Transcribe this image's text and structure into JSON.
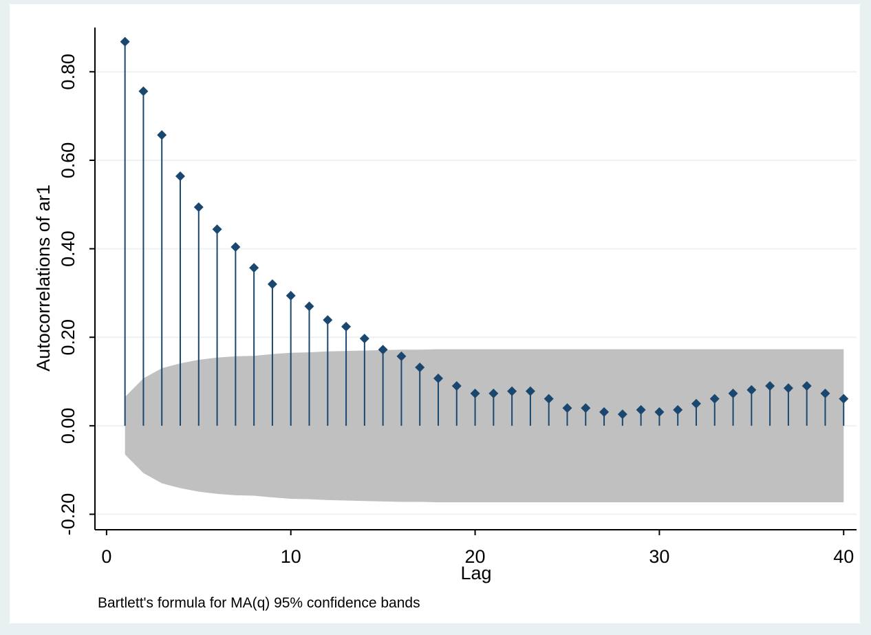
{
  "chart_data": {
    "type": "stem",
    "ylabel": "Autocorrelations of ar1",
    "xlabel": "Lag",
    "note": "Bartlett's formula for MA(q) 95% confidence bands",
    "x": [
      1,
      2,
      3,
      4,
      5,
      6,
      7,
      8,
      9,
      10,
      11,
      12,
      13,
      14,
      15,
      16,
      17,
      18,
      19,
      20,
      21,
      22,
      23,
      24,
      25,
      26,
      27,
      28,
      29,
      30,
      31,
      32,
      33,
      34,
      35,
      36,
      37,
      38,
      39,
      40
    ],
    "values": [
      0.868,
      0.756,
      0.657,
      0.564,
      0.494,
      0.444,
      0.404,
      0.357,
      0.32,
      0.294,
      0.27,
      0.239,
      0.224,
      0.197,
      0.172,
      0.157,
      0.132,
      0.107,
      0.09,
      0.073,
      0.073,
      0.078,
      0.078,
      0.061,
      0.04,
      0.04,
      0.031,
      0.026,
      0.036,
      0.031,
      0.036,
      0.05,
      0.061,
      0.073,
      0.081,
      0.09,
      0.085,
      0.09,
      0.073,
      0.061
    ],
    "color": "#1a476f",
    "band": {
      "color": "#c0c0c0",
      "upper": [
        0.065,
        0.107,
        0.13,
        0.141,
        0.149,
        0.154,
        0.157,
        0.158,
        0.162,
        0.165,
        0.166,
        0.168,
        0.169,
        0.17,
        0.171,
        0.172,
        0.172,
        0.173,
        0.173,
        0.173,
        0.173,
        0.173,
        0.173,
        0.173,
        0.173,
        0.173,
        0.173,
        0.173,
        0.173,
        0.173,
        0.173,
        0.173,
        0.173,
        0.173,
        0.173,
        0.173,
        0.173,
        0.173,
        0.173,
        0.173
      ],
      "lower": [
        -0.065,
        -0.107,
        -0.13,
        -0.141,
        -0.149,
        -0.154,
        -0.157,
        -0.158,
        -0.162,
        -0.165,
        -0.166,
        -0.168,
        -0.169,
        -0.17,
        -0.171,
        -0.172,
        -0.172,
        -0.173,
        -0.173,
        -0.173,
        -0.173,
        -0.173,
        -0.173,
        -0.173,
        -0.173,
        -0.173,
        -0.173,
        -0.173,
        -0.173,
        -0.173,
        -0.173,
        -0.173,
        -0.173,
        -0.173,
        -0.173,
        -0.173,
        -0.173,
        -0.173,
        -0.173,
        -0.173
      ]
    },
    "xlim": [
      -0.63,
      40.7
    ],
    "ylim": [
      -0.235,
      0.9
    ],
    "xticks": [
      0,
      10,
      20,
      30,
      40
    ],
    "yticks": [
      {
        "value": -0.2,
        "label": "-0.20"
      },
      {
        "value": 0,
        "label": "0.00"
      },
      {
        "value": 0.2,
        "label": "0.20"
      },
      {
        "value": 0.4,
        "label": "0.40"
      },
      {
        "value": 0.6,
        "label": "0.60"
      },
      {
        "value": 0.8,
        "label": "0.80"
      }
    ],
    "grid": true
  }
}
